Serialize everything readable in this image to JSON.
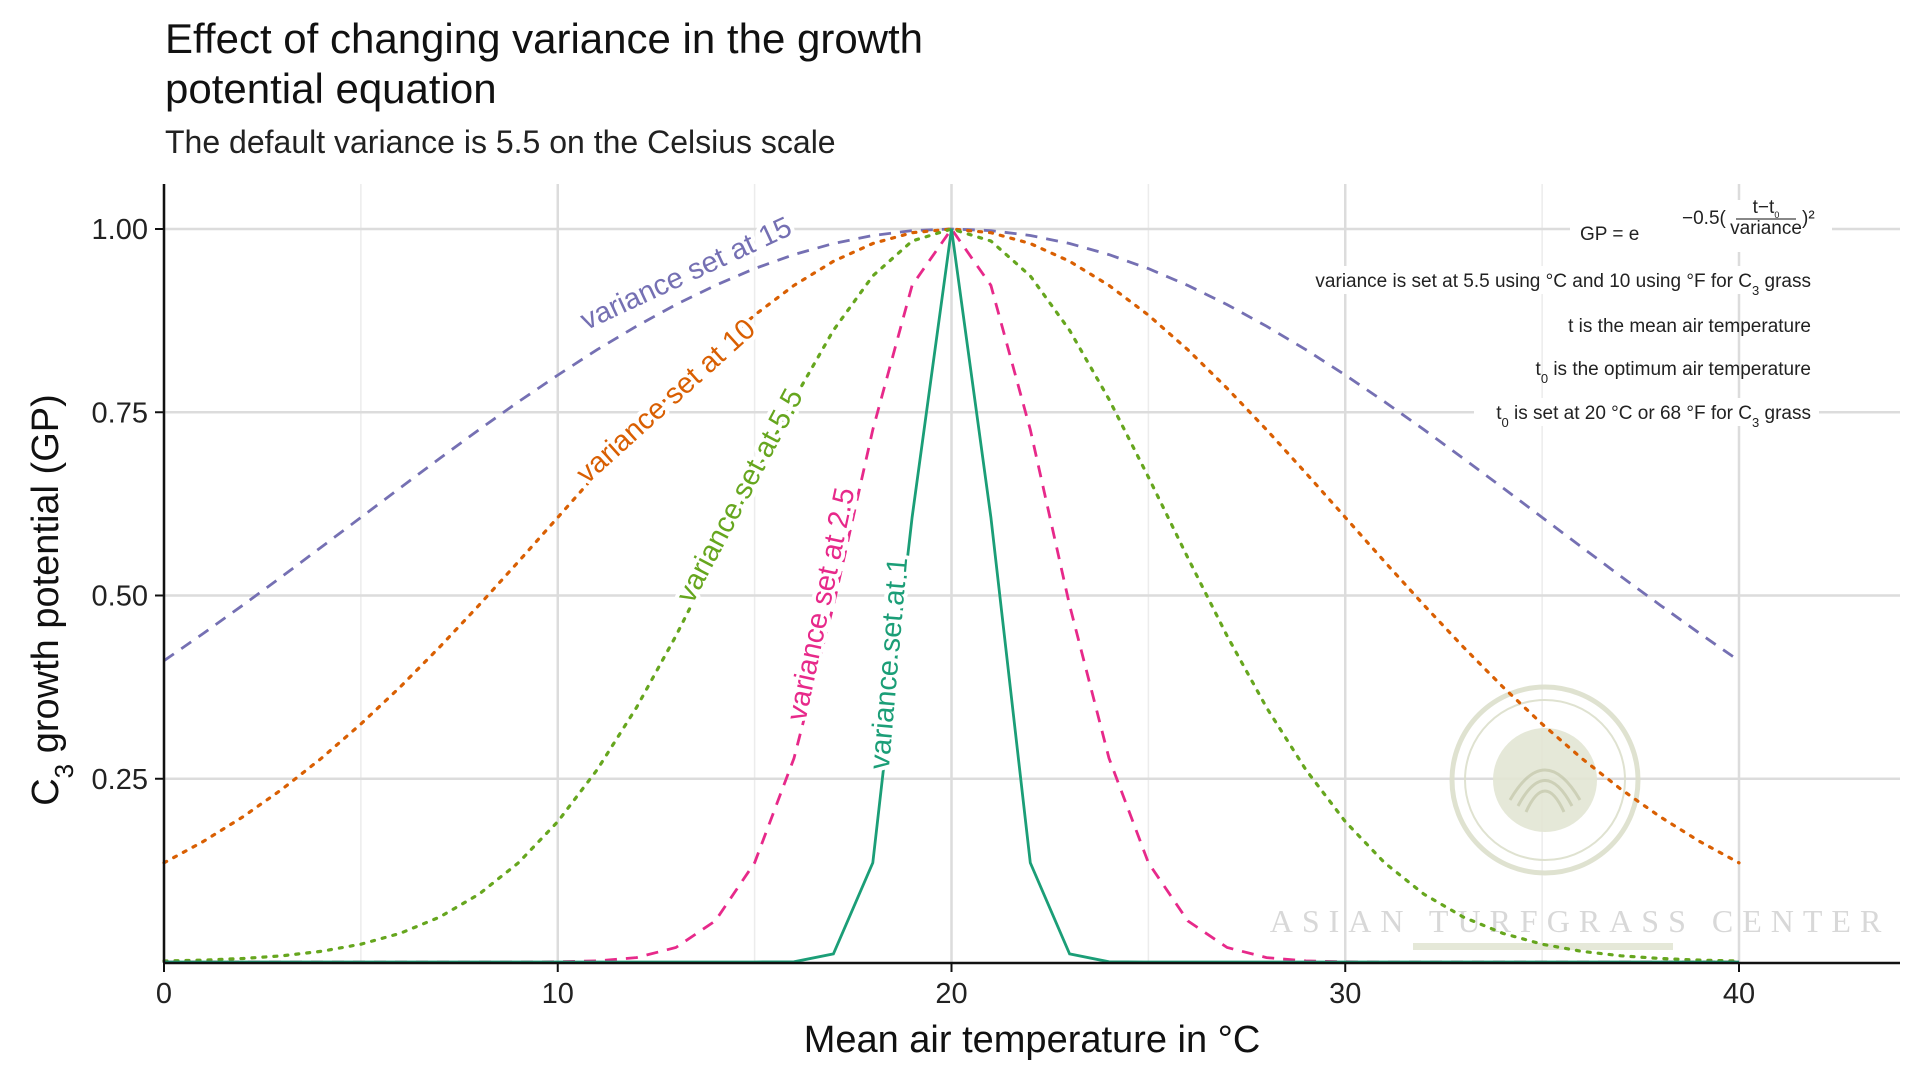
{
  "title": "Effect of changing variance in the growth potential equation",
  "subtitle": "The default variance is 5.5 on the Celsius scale",
  "chart_data": {
    "type": "line",
    "xlabel": "Mean air temperature in °C",
    "ylabel": "C3 growth potential (GP)",
    "xlim": [
      0,
      44
    ],
    "ylim": [
      0,
      1.06
    ],
    "x_ticks": [
      "0",
      "10",
      "20",
      "30",
      "40"
    ],
    "y_ticks": [
      "0.25",
      "0.50",
      "0.75",
      "1.00"
    ],
    "grid": true,
    "optimum_temperature": 20,
    "x_range": [
      0,
      40
    ],
    "x_step": 1,
    "formula": "GP = exp(-0.5*((t - t0)/variance)^2)",
    "series": [
      {
        "name": "variance set at 15",
        "variance": 15,
        "color": "#7570B3",
        "linetype": "dashed"
      },
      {
        "name": "variance set at 10",
        "variance": 10,
        "color": "#D95F02",
        "linetype": "dotted"
      },
      {
        "name": "variance set at 5.5",
        "variance": 5.5,
        "color": "#66A61E",
        "linetype": "dotted"
      },
      {
        "name": "variance set at 2.5",
        "variance": 2.5,
        "color": "#E7298A",
        "linetype": "dashed"
      },
      {
        "name": "variance set at 1",
        "variance": 1,
        "color": "#1B9E77",
        "linetype": "solid"
      }
    ],
    "annotations": {
      "equation": "GP = e^{-0.5((t-t0)/variance)^2}",
      "lines": [
        "variance is set at 5.5 using °C and 10 using °F for C3 grass",
        "t is the mean air temperature",
        "t0 is the optimum air temperature",
        "t0 is set at 20 °C or 68 °F for C3 grass"
      ]
    }
  },
  "watermark": "ASIAN TURFGRASS CENTER",
  "seal_text": "ATC ASIAN TURFGRASS CENTER"
}
